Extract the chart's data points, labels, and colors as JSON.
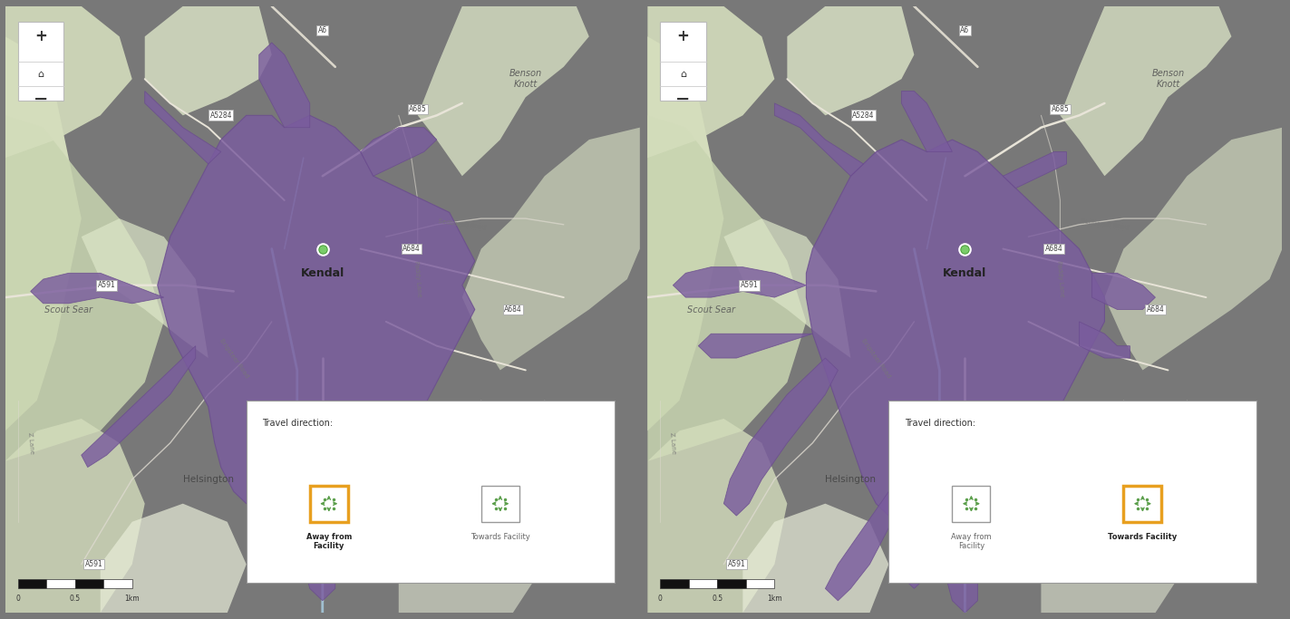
{
  "figure_width": 14.23,
  "figure_height": 6.83,
  "bg_color": "#787878",
  "map_bg_cream": "#f0ede4",
  "map_bg_light": "#edeae0",
  "panels": [
    {
      "active_icon": "away",
      "legend_items": [
        {
          "label": "Away from\nFacility",
          "active": true
        },
        {
          "label": "Towards Facility",
          "active": false
        }
      ]
    },
    {
      "active_icon": "towards",
      "legend_items": [
        {
          "label": "Away from\nFacility",
          "active": false
        },
        {
          "label": "Towards Facility",
          "active": true
        }
      ]
    }
  ],
  "terrain_colors": {
    "green_hill_dark": "#c8d4b0",
    "green_hill_med": "#d4ddbc",
    "green_hill_light": "#dde6c8",
    "green_pale": "#e8edd8",
    "cream_urban": "#f5f2ea",
    "cream_light": "#f0ede4",
    "water_blue": "#b8d8ec",
    "road_cream": "#ede8da",
    "road_light": "#f5f0e8"
  },
  "purple_main": "#7a5c9e",
  "purple_dark": "#6a4c8e",
  "purple_alpha": 0.82,
  "green_dot_outer": "#4a9e3a",
  "green_dot_inner": "#7acc6a",
  "active_orange": "#e8a020",
  "inactive_color": "#888888",
  "legend_icon_green": "#5a9e4a",
  "zoom_ctrl_bg": "#ffffff",
  "legend_bg": "#ffffff",
  "legend_border": "#cccccc",
  "road_label_bg": "#ffffff",
  "road_label_border": "#aaaaaa"
}
